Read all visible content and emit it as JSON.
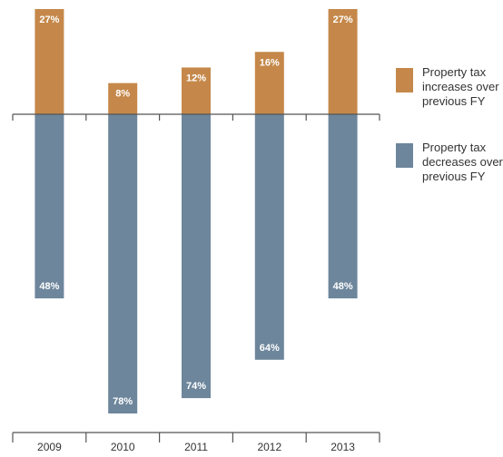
{
  "chart_data": {
    "type": "bar",
    "categories": [
      "2009",
      "2010",
      "2011",
      "2012",
      "2013"
    ],
    "series": [
      {
        "name": "Property tax increases over previous FY",
        "values": [
          27,
          8,
          12,
          16,
          27
        ],
        "labels": [
          "27%",
          "8%",
          "12%",
          "16%",
          "27%"
        ],
        "color": "#c5884a",
        "direction": "up"
      },
      {
        "name": "Property tax decreases over previous FY",
        "values": [
          48,
          78,
          74,
          64,
          48
        ],
        "labels": [
          "48%",
          "78%",
          "74%",
          "64%",
          "48%"
        ],
        "color": "#6d869c",
        "direction": "down"
      }
    ],
    "unit": "%",
    "title": "",
    "xlabel": "",
    "ylabel": "",
    "grid": false,
    "legend_position": "right"
  },
  "legend": {
    "increase_label": "Property tax increases over previous FY",
    "decrease_label": "Property tax decreases over previous FY"
  }
}
